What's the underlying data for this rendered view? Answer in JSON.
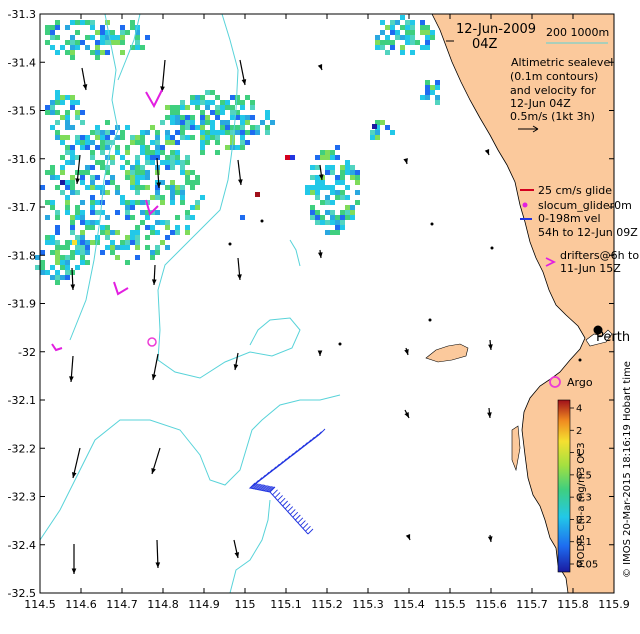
{
  "map": {
    "date_line": "12-Jun-2009",
    "time_line": "04Z",
    "depth_legend": "200  1000m",
    "sealevel_lines": [
      "Altimetric sealevel",
      "(0.1m contours)",
      "and velocity for",
      "12-Jun 04Z",
      "0.5m/s (1kt 3h)"
    ],
    "glider_lines": [
      "25 cm/s glide",
      "slocum_glider0m",
      "0-198m vel",
      "54h to 12-Jun 09Z"
    ],
    "drifter_lines": [
      "drifters@6h to",
      "11-Jun 15Z"
    ],
    "perth_label": "Perth",
    "argo_label": "Argo",
    "side_text": "© IMOS 20-Mar-2015 18:16:19 Hobart time",
    "colorbar_title": "MODIS Chl-a mg/m3 OC3",
    "colorbar_ticks": [
      "4",
      "2",
      "1",
      "0.5",
      "0.3",
      "0.2",
      "0.1",
      "0.05"
    ],
    "x_ticks": [
      "114.5",
      "114.6",
      "114.7",
      "114.8",
      "114.9",
      "115",
      "115.1",
      "115.2",
      "115.3",
      "115.4",
      "115.5",
      "115.6",
      "115.7",
      "115.8",
      "115.9"
    ],
    "y_ticks": [
      "-31.3",
      "-31.4",
      "-31.5",
      "-31.6",
      "-31.7",
      "-31.8",
      "-31.9",
      "-32",
      "-32.1",
      "-32.2",
      "-32.3",
      "-32.4",
      "-32.5"
    ],
    "lon_range": [
      114.5,
      115.9
    ],
    "lat_range": [
      -32.5,
      -31.3
    ],
    "colors": {
      "land": "#fbc99c",
      "bathy_200": "#58d3d9",
      "bathy_1000": "#58d3d9",
      "glider": "#d4001e",
      "drifter": "#e21fe0",
      "argo": "#ec3bd6",
      "track": "#2235e0",
      "arrow": "#000000",
      "chl_blue": "#1e6cf0",
      "chl_cyan": "#22c8e8",
      "chl_green": "#3fcf7f"
    }
  }
}
